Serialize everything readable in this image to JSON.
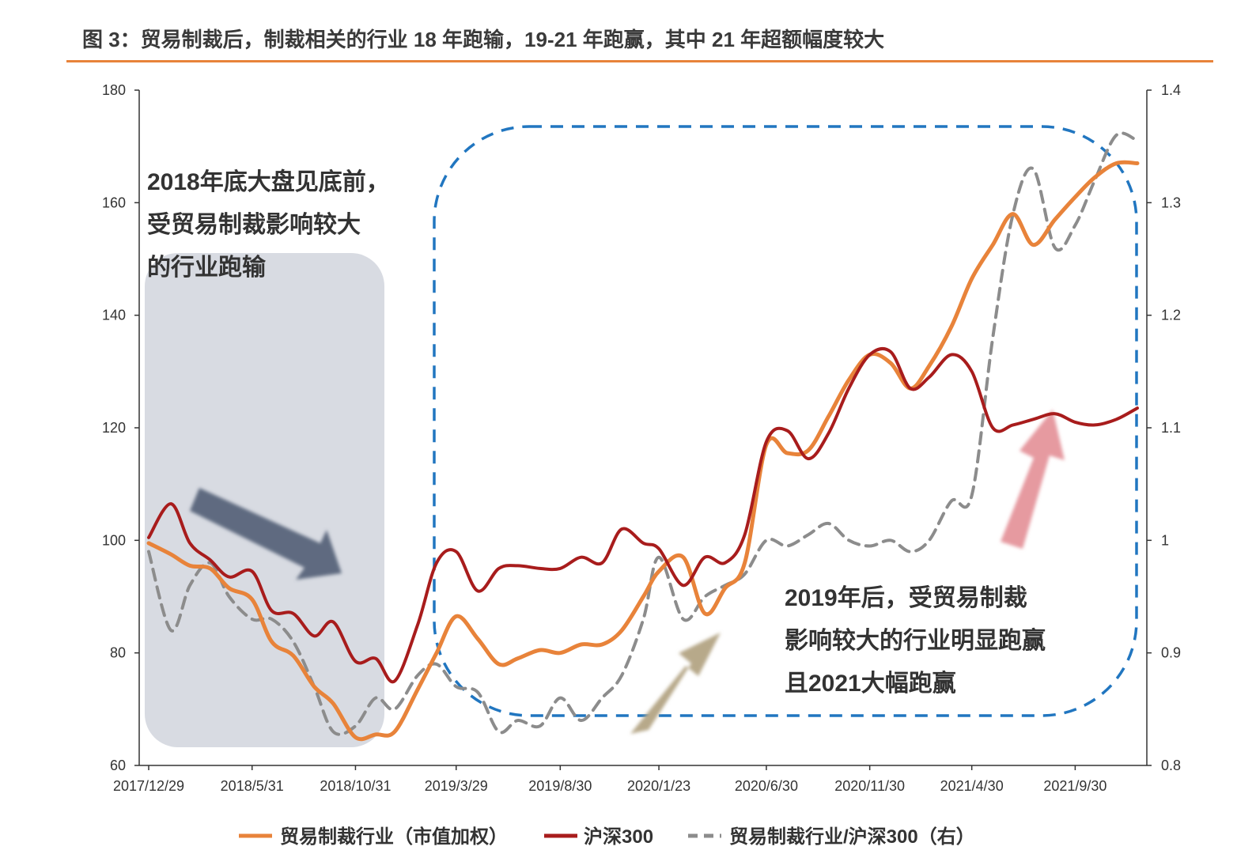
{
  "figure_title": "图 3：贸易制裁后，制裁相关的行业 18 年跑输，19-21 年跑赢，其中 21 年超额幅度较大",
  "colors": {
    "industry": "#e8833a",
    "hs300": "#a81c1c",
    "ratio": "#8c8c8c",
    "rule": "#e8833a",
    "shade": "#d8dbe2",
    "dashed_box": "#2176c0",
    "arrow_down": "#5f6b80",
    "arrow_up_tan": "#b7a98a",
    "arrow_up_pink": "#e69aa0"
  },
  "annotations": {
    "left": [
      "2018年底大盘见底前，",
      "受贸易制裁影响较大",
      "的行业跑输"
    ],
    "right": [
      "2019年后，受贸易制裁",
      "影响较大的行业明显跑赢",
      "且2021大幅跑赢"
    ]
  },
  "chart_data": {
    "type": "line",
    "title": "",
    "x_ticks": [
      "2017/12/29",
      "2018/5/31",
      "2018/10/31",
      "2019/3/29",
      "2019/8/30",
      "2020/1/23",
      "2020/6/30",
      "2020/11/30",
      "2021/4/30",
      "2021/9/30"
    ],
    "x_range": [
      "2017/12/29",
      "2021/12/31"
    ],
    "y_left": {
      "min": 60,
      "max": 180,
      "ticks": [
        "60",
        "80",
        "100",
        "120",
        "140",
        "160",
        "180"
      ]
    },
    "y_right": {
      "min": 0.8,
      "max": 1.4,
      "ticks": [
        "0.8",
        "0.9",
        "1",
        "1.1",
        "1.2",
        "1.3",
        "1.4"
      ]
    },
    "grid": false,
    "legend_position": "bottom",
    "series": [
      {
        "name": "贸易制裁行业（市值加权）",
        "axis": "left",
        "style": "solid",
        "x": [
          "2017-12-29",
          "2018-01-31",
          "2018-02-28",
          "2018-03-30",
          "2018-04-27",
          "2018-05-31",
          "2018-06-29",
          "2018-07-31",
          "2018-08-31",
          "2018-09-28",
          "2018-10-31",
          "2018-11-30",
          "2018-12-28",
          "2019-01-31",
          "2019-02-28",
          "2019-03-29",
          "2019-04-30",
          "2019-05-31",
          "2019-06-28",
          "2019-07-31",
          "2019-08-30",
          "2019-09-30",
          "2019-10-31",
          "2019-11-29",
          "2019-12-31",
          "2020-01-23",
          "2020-02-28",
          "2020-03-31",
          "2020-04-30",
          "2020-05-29",
          "2020-06-30",
          "2020-07-31",
          "2020-08-31",
          "2020-09-30",
          "2020-10-30",
          "2020-11-30",
          "2020-12-31",
          "2021-01-29",
          "2021-02-26",
          "2021-03-31",
          "2021-04-30",
          "2021-05-31",
          "2021-06-30",
          "2021-07-30",
          "2021-08-31",
          "2021-09-30",
          "2021-10-29",
          "2021-11-30",
          "2021-12-31"
        ],
        "values": [
          99.5,
          97.5,
          95.5,
          95.0,
          91.5,
          89.5,
          82.0,
          79.5,
          74.0,
          71.0,
          65.0,
          65.5,
          66.0,
          73.5,
          80.0,
          86.5,
          82.5,
          78.0,
          79.0,
          80.5,
          80.0,
          81.5,
          81.5,
          84.0,
          90.0,
          94.5,
          97.0,
          87.0,
          91.5,
          96.0,
          117.0,
          115.5,
          116.0,
          122.0,
          128.5,
          133.0,
          131.5,
          127.0,
          131.0,
          138.0,
          146.5,
          152.5,
          158.0,
          152.5,
          157.0,
          161.0,
          164.5,
          167.0,
          167.0
        ]
      },
      {
        "name": "沪深300",
        "axis": "left",
        "style": "solid",
        "x": [
          "2017-12-29",
          "2018-01-31",
          "2018-02-28",
          "2018-03-30",
          "2018-04-27",
          "2018-05-31",
          "2018-06-29",
          "2018-07-31",
          "2018-08-31",
          "2018-09-28",
          "2018-10-31",
          "2018-11-30",
          "2018-12-28",
          "2019-01-31",
          "2019-02-28",
          "2019-03-29",
          "2019-04-30",
          "2019-05-31",
          "2019-06-28",
          "2019-07-31",
          "2019-08-30",
          "2019-09-30",
          "2019-10-31",
          "2019-11-29",
          "2019-12-31",
          "2020-01-23",
          "2020-02-28",
          "2020-03-31",
          "2020-04-30",
          "2020-05-29",
          "2020-06-30",
          "2020-07-31",
          "2020-08-31",
          "2020-09-30",
          "2020-10-30",
          "2020-11-30",
          "2020-12-31",
          "2021-01-29",
          "2021-02-26",
          "2021-03-31",
          "2021-04-30",
          "2021-05-31",
          "2021-06-30",
          "2021-07-30",
          "2021-08-31",
          "2021-09-30",
          "2021-10-29",
          "2021-11-30",
          "2021-12-31"
        ],
        "values": [
          100.5,
          106.5,
          99.5,
          96.5,
          93.5,
          94.5,
          87.5,
          87.0,
          83.0,
          85.5,
          78.5,
          79.0,
          75.0,
          85.0,
          96.0,
          98.0,
          91.0,
          95.0,
          95.5,
          95.0,
          95.0,
          97.0,
          96.0,
          102.0,
          99.5,
          98.5,
          92.0,
          97.0,
          96.0,
          101.0,
          117.5,
          119.5,
          114.5,
          119.0,
          127.0,
          133.0,
          133.5,
          127.0,
          129.0,
          133.0,
          130.0,
          120.0,
          120.5,
          121.5,
          122.5,
          121.0,
          120.5,
          121.5,
          123.5
        ]
      },
      {
        "name": "贸易制裁行业/沪深300（右）",
        "axis": "right",
        "style": "dashed",
        "x": [
          "2017-12-29",
          "2018-01-31",
          "2018-02-28",
          "2018-03-30",
          "2018-04-27",
          "2018-05-31",
          "2018-06-29",
          "2018-07-31",
          "2018-08-31",
          "2018-09-28",
          "2018-10-31",
          "2018-11-30",
          "2018-12-28",
          "2019-01-31",
          "2019-02-28",
          "2019-03-29",
          "2019-04-30",
          "2019-05-31",
          "2019-06-28",
          "2019-07-31",
          "2019-08-30",
          "2019-09-30",
          "2019-10-31",
          "2019-11-29",
          "2019-12-31",
          "2020-01-23",
          "2020-02-28",
          "2020-03-31",
          "2020-04-30",
          "2020-05-29",
          "2020-06-30",
          "2020-07-31",
          "2020-08-31",
          "2020-09-30",
          "2020-10-30",
          "2020-11-30",
          "2020-12-31",
          "2021-01-29",
          "2021-02-26",
          "2021-03-31",
          "2021-04-30",
          "2021-05-31",
          "2021-06-30",
          "2021-07-30",
          "2021-08-31",
          "2021-09-30",
          "2021-10-29",
          "2021-11-30",
          "2021-12-31"
        ],
        "values": [
          0.99,
          0.92,
          0.96,
          0.98,
          0.95,
          0.93,
          0.93,
          0.91,
          0.87,
          0.83,
          0.835,
          0.86,
          0.85,
          0.88,
          0.89,
          0.87,
          0.865,
          0.83,
          0.84,
          0.835,
          0.86,
          0.84,
          0.86,
          0.88,
          0.93,
          0.985,
          0.93,
          0.95,
          0.96,
          0.97,
          1.0,
          0.995,
          1.005,
          1.015,
          1.0,
          0.995,
          1.0,
          0.99,
          1.0,
          1.035,
          1.04,
          1.18,
          1.29,
          1.33,
          1.26,
          1.28,
          1.32,
          1.36,
          1.355
        ]
      }
    ]
  }
}
